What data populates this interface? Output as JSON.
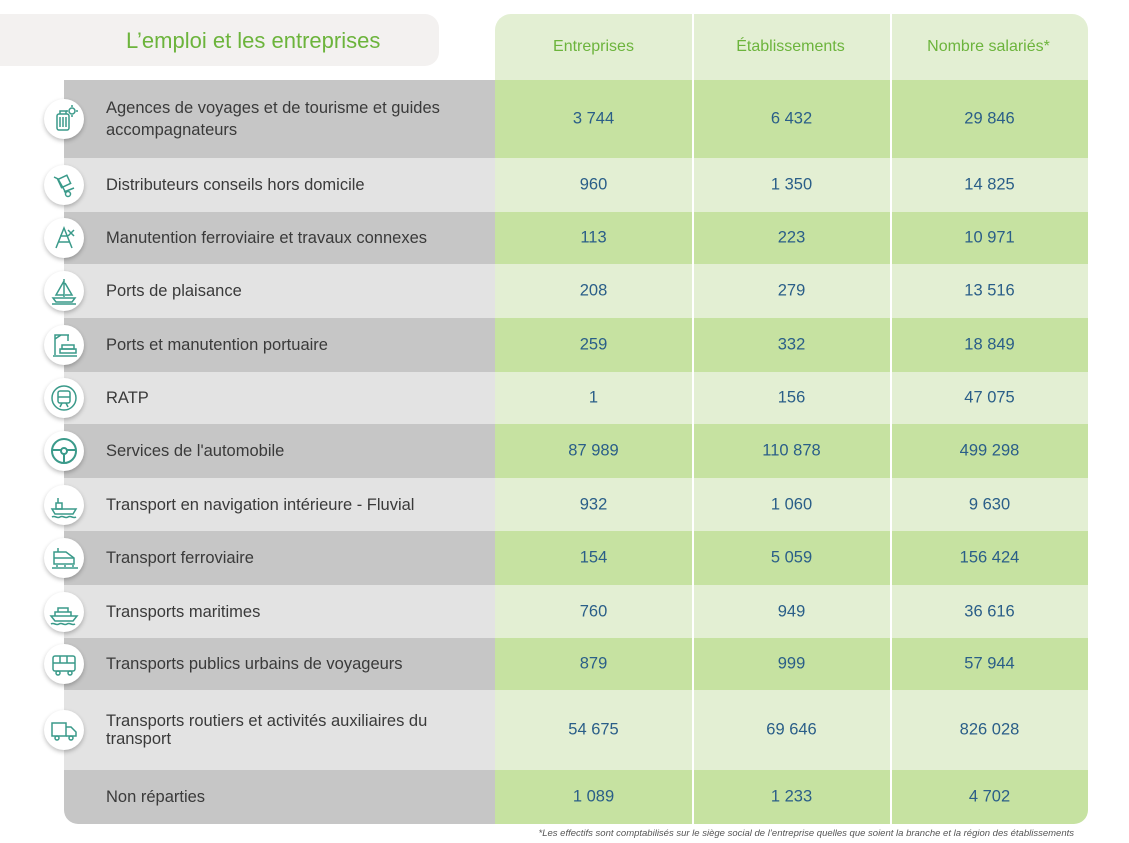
{
  "title": "L’emploi et les entreprises",
  "columns": [
    "Entreprises",
    "Établissements",
    "Nombre salariés*"
  ],
  "rows": [
    {
      "label": "Agences de voyages et de tourisme et guides accompagnateurs",
      "entreprises": "3 744",
      "etablissements": "6 432",
      "salaries": "29 846",
      "icon": "luggage-sun-icon"
    },
    {
      "label": "Distributeurs conseils hors domicile",
      "entreprises": "960",
      "etablissements": "1 350",
      "salaries": "14 825",
      "icon": "hand-truck-icon"
    },
    {
      "label": "Manutention ferroviaire et travaux connexes",
      "entreprises": "113",
      "etablissements": "223",
      "salaries": "10 971",
      "icon": "rail-tools-icon"
    },
    {
      "label": "Ports de plaisance",
      "entreprises": "208",
      "etablissements": "279",
      "salaries": "13 516",
      "icon": "sailboat-icon"
    },
    {
      "label": "Ports et manutention portuaire",
      "entreprises": "259",
      "etablissements": "332",
      "salaries": "18 849",
      "icon": "port-crane-icon"
    },
    {
      "label": "RATP",
      "entreprises": "1",
      "etablissements": "156",
      "salaries": "47 075",
      "icon": "metro-train-icon"
    },
    {
      "label": "Services de l'automobile",
      "entreprises": "87 989",
      "etablissements": "110 878",
      "salaries": "499 298",
      "icon": "steering-wheel-icon"
    },
    {
      "label": "Transport en navigation intérieure - Fluvial",
      "entreprises": "932",
      "etablissements": "1 060",
      "salaries": "9 630",
      "icon": "barge-icon"
    },
    {
      "label": "Transport ferroviaire",
      "entreprises": "154",
      "etablissements": "5 059",
      "salaries": "156 424",
      "icon": "train-icon"
    },
    {
      "label": "Transports maritimes",
      "entreprises": "760",
      "etablissements": "949",
      "salaries": "36 616",
      "icon": "ship-icon"
    },
    {
      "label": "Transports publics urbains de voyageurs",
      "entreprises": "879",
      "etablissements": "999",
      "salaries": "57 944",
      "icon": "bus-icon"
    },
    {
      "label": "Transports routiers et activités auxiliaires du transport",
      "entreprises": "54 675",
      "etablissements": "69 646",
      "salaries": "826 028",
      "icon": "truck-icon"
    },
    {
      "label": "Non réparties",
      "entreprises": "1 089",
      "etablissements": "1 233",
      "salaries": "4 702",
      "icon": ""
    }
  ],
  "footnote": "*Les effectifs sont comptabilisés sur le siège social de l’entreprise quelles que soient la branche et la région des établissements",
  "colors": {
    "accent_green": "#6cb43c",
    "value_blue": "#2a5e88",
    "icon_teal": "#3a9a8a"
  }
}
